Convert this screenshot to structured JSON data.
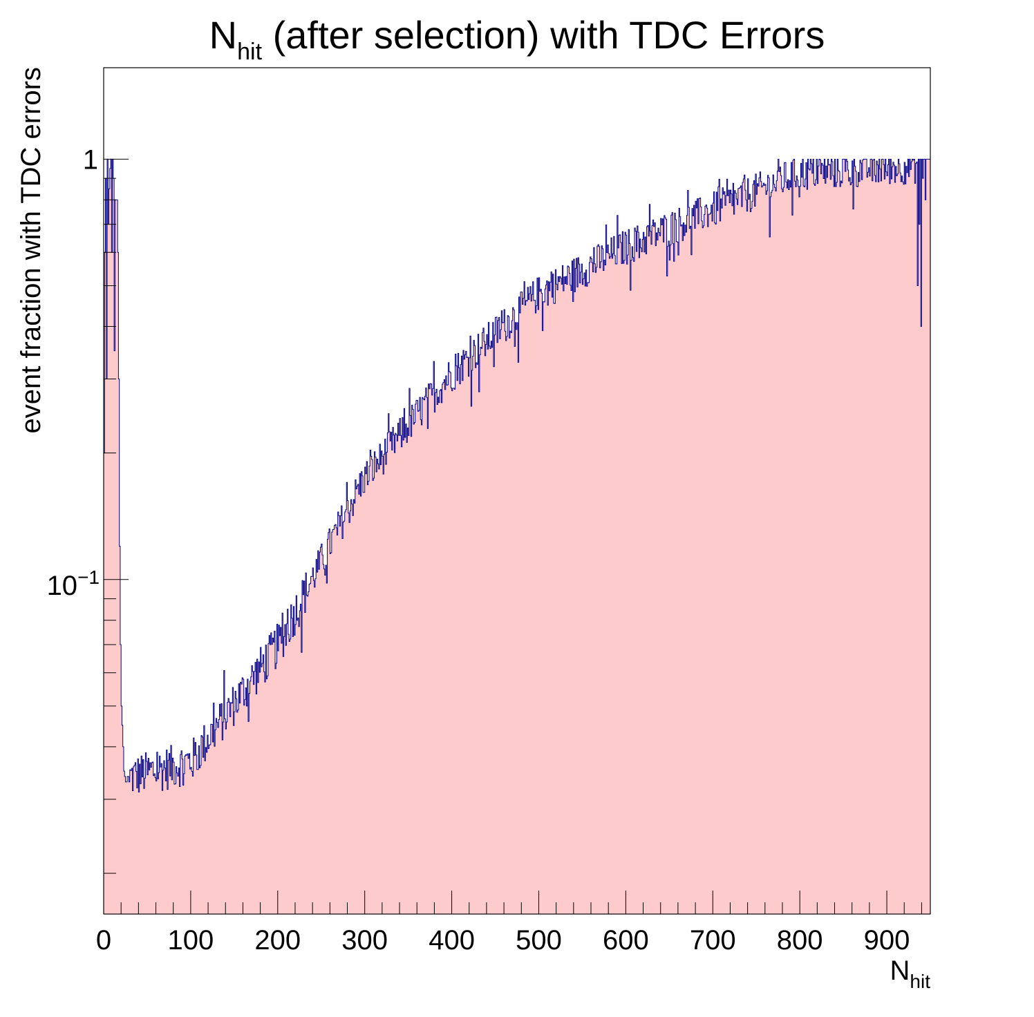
{
  "chart_data": {
    "type": "bar",
    "title": {
      "main": "N",
      "sub": "hit",
      "rest": " (after selection) with TDC Errors"
    },
    "xlabel": {
      "main": "N",
      "sub": "hit"
    },
    "ylabel": "event fraction with TDC errors",
    "xlim": [
      0,
      950
    ],
    "ylim": [
      0.016,
      1.65
    ],
    "yscale": "log",
    "bin_width": 1,
    "x_ticks": [
      "0",
      "100",
      "200",
      "300",
      "400",
      "500",
      "600",
      "700",
      "800",
      "900"
    ],
    "y_ticks": [
      {
        "label_base": "1",
        "label_exp": "",
        "value": 1
      },
      {
        "label_base": "10",
        "label_exp": "−1",
        "value": 0.1
      }
    ],
    "grid": false,
    "legend": "none",
    "fill_color": "#fdcbcc",
    "line_color": "#00008b",
    "segments": [
      {
        "x_start": 0,
        "x_end": 20,
        "values": [
          0.2,
          0.6,
          0.9,
          0.3,
          1.0,
          0.7,
          0.85,
          0.95,
          1.0,
          0.6,
          1.0,
          0.9,
          0.35,
          0.8,
          0.8,
          0.8,
          0.6,
          0.3,
          0.12,
          0.07
        ]
      },
      {
        "x_start": 20,
        "x_end": 30,
        "values": [
          0.05,
          0.045,
          0.04,
          0.035,
          0.034,
          0.033,
          0.033,
          0.034,
          0.034,
          0.033
        ]
      },
      {
        "x_start": 30,
        "x_end": 100,
        "values_from": 0.034,
        "values_to": 0.037
      },
      {
        "x_start": 100,
        "x_end": 200,
        "values_from": 0.037,
        "values_to": 0.07
      },
      {
        "x_start": 200,
        "x_end": 300,
        "values_from": 0.07,
        "values_to": 0.175
      },
      {
        "x_start": 300,
        "x_end": 400,
        "values_from": 0.175,
        "values_to": 0.31
      },
      {
        "x_start": 400,
        "x_end": 500,
        "values_from": 0.31,
        "values_to": 0.48
      },
      {
        "x_start": 500,
        "x_end": 600,
        "values_from": 0.48,
        "values_to": 0.62
      },
      {
        "x_start": 600,
        "x_end": 700,
        "values_from": 0.62,
        "values_to": 0.76
      },
      {
        "x_start": 700,
        "x_end": 800,
        "values_from": 0.76,
        "values_to": 0.93
      },
      {
        "x_start": 800,
        "x_end": 935,
        "values_from": 0.93,
        "values_to": 0.97
      },
      {
        "x_start": 935,
        "x_end": 950,
        "values": [
          0.5,
          1.0,
          0.7,
          1.0,
          0.4,
          1.0,
          0.9,
          1.0,
          1.0,
          0.8,
          1.0,
          1.0,
          1.0,
          1.0,
          1.0
        ]
      }
    ]
  }
}
